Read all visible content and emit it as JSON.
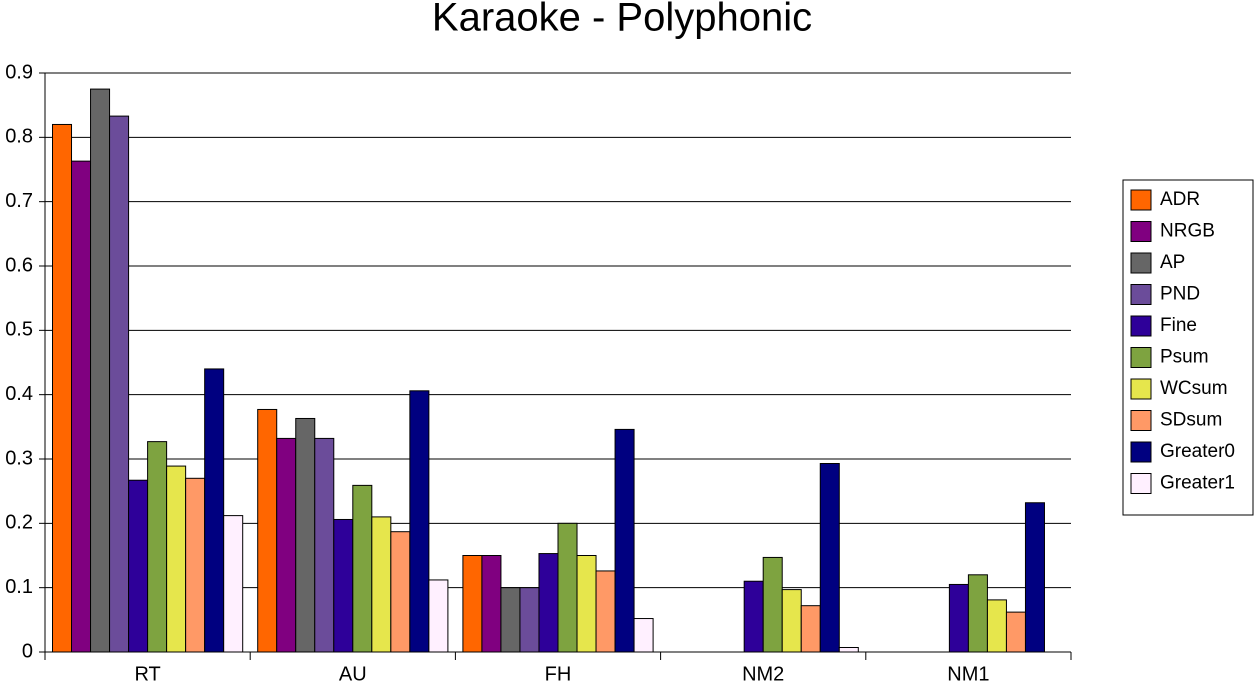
{
  "chart_data": {
    "type": "bar",
    "title": "Karaoke - Polyphonic",
    "categories": [
      "RT",
      "AU",
      "FH",
      "NM2",
      "NM1"
    ],
    "series": [
      {
        "name": "ADR",
        "color": "#ff6600",
        "values": [
          0.82,
          0.377,
          0.15,
          0,
          0
        ]
      },
      {
        "name": "NRGB",
        "color": "#800080",
        "values": [
          0.763,
          0.332,
          0.15,
          0,
          0
        ]
      },
      {
        "name": "AP",
        "color": "#666666",
        "values": [
          0.875,
          0.363,
          0.1,
          0,
          0
        ]
      },
      {
        "name": "PND",
        "color": "#6b4c9a",
        "values": [
          0.833,
          0.332,
          0.1,
          0,
          0
        ]
      },
      {
        "name": "Fine",
        "color": "#2e0099",
        "values": [
          0.267,
          0.206,
          0.153,
          0.11,
          0.105
        ]
      },
      {
        "name": "Psum",
        "color": "#7ea340",
        "values": [
          0.327,
          0.259,
          0.2,
          0.147,
          0.12
        ]
      },
      {
        "name": "WCsum",
        "color": "#e6e64c",
        "values": [
          0.289,
          0.21,
          0.15,
          0.097,
          0.081
        ]
      },
      {
        "name": "SDsum",
        "color": "#ff9966",
        "values": [
          0.27,
          0.187,
          0.126,
          0.072,
          0.062
        ]
      },
      {
        "name": "Greater0",
        "color": "#000080",
        "values": [
          0.44,
          0.406,
          0.346,
          0.293,
          0.232
        ]
      },
      {
        "name": "Greater1",
        "color": "#fff0ff",
        "values": [
          0.212,
          0.112,
          0.052,
          0.007,
          0
        ]
      }
    ],
    "ylim": [
      0,
      0.9
    ],
    "yticks": [
      0,
      0.1,
      0.2,
      0.3,
      0.4,
      0.5,
      0.6,
      0.7,
      0.8,
      0.9
    ],
    "grid": true,
    "legend": "right"
  }
}
